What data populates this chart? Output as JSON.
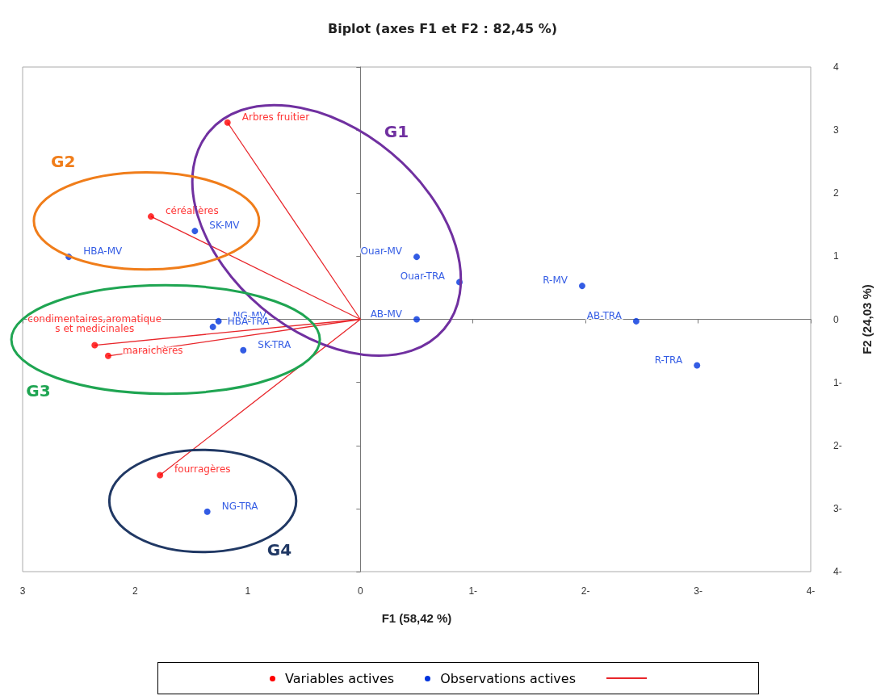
{
  "chart_data": {
    "type": "scatter",
    "title": "Biplot (axes F1 et F2 : 82,45 %)",
    "xlabel": "F1 (58,42 %)",
    "ylabel": "F2 (24,03 %)",
    "xlim": [
      -3,
      4
    ],
    "xticks": [
      {
        "value": -3,
        "label": "3"
      },
      {
        "value": -2,
        "label": "2"
      },
      {
        "value": -1,
        "label": "1"
      },
      0,
      {
        "value": 1,
        "label": "1-"
      },
      {
        "value": 2,
        "label": "2-"
      },
      {
        "value": 3,
        "label": "3-"
      },
      {
        "value": 4,
        "label": "4-"
      }
    ],
    "ylim": [
      -4,
      4
    ],
    "yticks": [
      {
        "value": -4,
        "label": "4-"
      },
      {
        "value": -3,
        "label": "3-"
      },
      {
        "value": -2,
        "label": "2-"
      },
      {
        "value": -1,
        "label": "1-"
      },
      0,
      1,
      2,
      3,
      4
    ],
    "legend": "bottom",
    "marker": "circle",
    "series": [
      {
        "type": "line",
        "color": "#e8262b",
        "marker": "none",
        "x": [
          0,
          -1.18
        ],
        "values": [
          0,
          3.12
        ]
      },
      {
        "type": "line",
        "color": "#e8262b",
        "marker": "none",
        "x": [
          0,
          -1.86
        ],
        "values": [
          0,
          1.63
        ]
      },
      {
        "type": "line",
        "color": "#e8262b",
        "marker": "none",
        "x": [
          0,
          -2.36
        ],
        "values": [
          0,
          -0.41
        ]
      },
      {
        "type": "line",
        "color": "#e8262b",
        "marker": "none",
        "x": [
          0,
          -2.24
        ],
        "values": [
          0,
          -0.58
        ]
      },
      {
        "type": "line",
        "color": "#e8262b",
        "marker": "none",
        "x": [
          0,
          -1.78
        ],
        "values": [
          0,
          -2.47
        ]
      },
      {
        "name": "Variables actives",
        "color": "#ff0000",
        "x": [
          -1.18,
          -1.86,
          -2.36,
          -2.24,
          -1.78
        ],
        "values": [
          3.12,
          1.63,
          -0.41,
          -0.58,
          -2.47
        ],
        "value_labels": [
          "Arbres fruitier",
          "céréalières",
          "condimentaires,aromatiques et medicinales",
          "maraichères",
          "fourragères"
        ]
      },
      {
        "name": "Observations actives",
        "color": "#0033dd",
        "x": [
          -1.47,
          -2.59,
          0.5,
          0.88,
          1.97,
          2.45,
          2.99,
          0.5,
          -1.26,
          -1.31,
          -1.04,
          -1.36
        ],
        "values": [
          1.4,
          0.99,
          0.99,
          0.59,
          0.53,
          -0.03,
          -0.73,
          0,
          -0.03,
          -0.12,
          -0.49,
          -3.05
        ],
        "value_labels": [
          "SK-MV",
          "HBA-MV",
          "Ouar-MV",
          "Ouar-TRA",
          "R-MV",
          "AB-TRA",
          "R-TRA",
          "AB-MV",
          "NG-MV",
          "HBA-TRA",
          "SK-TRA",
          "NG-TRA"
        ]
      }
    ],
    "annotations": [
      "G1",
      "G2",
      "G3",
      "G4"
    ]
  }
}
